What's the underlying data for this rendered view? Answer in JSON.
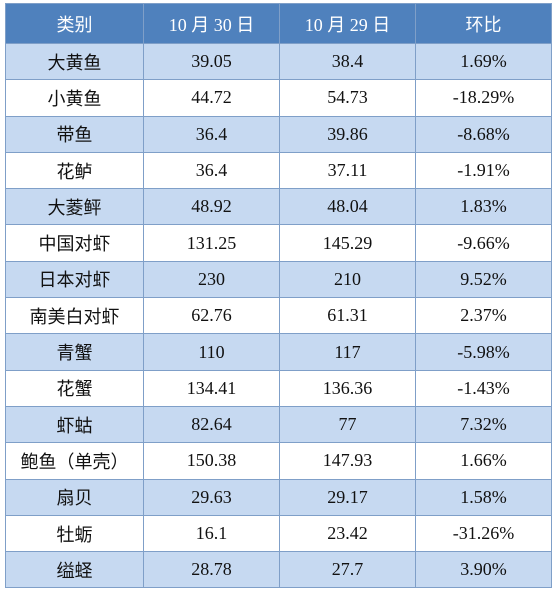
{
  "table": {
    "header": [
      "类别",
      "10 月 30 日",
      "10 月 29 日",
      "环比"
    ],
    "rows": [
      [
        "大黄鱼",
        "39.05",
        "38.4",
        "1.69%"
      ],
      [
        "小黄鱼",
        "44.72",
        "54.73",
        "-18.29%"
      ],
      [
        "带鱼",
        "36.4",
        "39.86",
        "-8.68%"
      ],
      [
        "花鲈",
        "36.4",
        "37.11",
        "-1.91%"
      ],
      [
        "大菱鲆",
        "48.92",
        "48.04",
        "1.83%"
      ],
      [
        "中国对虾",
        "131.25",
        "145.29",
        "-9.66%"
      ],
      [
        "日本对虾",
        "230",
        "210",
        "9.52%"
      ],
      [
        "南美白对虾",
        "62.76",
        "61.31",
        "2.37%"
      ],
      [
        "青蟹",
        "110",
        "117",
        "-5.98%"
      ],
      [
        "花蟹",
        "134.41",
        "136.36",
        "-1.43%"
      ],
      [
        "虾蛄",
        "82.64",
        "77",
        "7.32%"
      ],
      [
        "鲍鱼（单壳）",
        "150.38",
        "147.93",
        "1.66%"
      ],
      [
        "扇贝",
        "29.63",
        "29.17",
        "1.58%"
      ],
      [
        "牡蛎",
        "16.1",
        "23.42",
        "-31.26%"
      ],
      [
        "缢蛏",
        "28.78",
        "27.7",
        "3.90%"
      ]
    ]
  }
}
